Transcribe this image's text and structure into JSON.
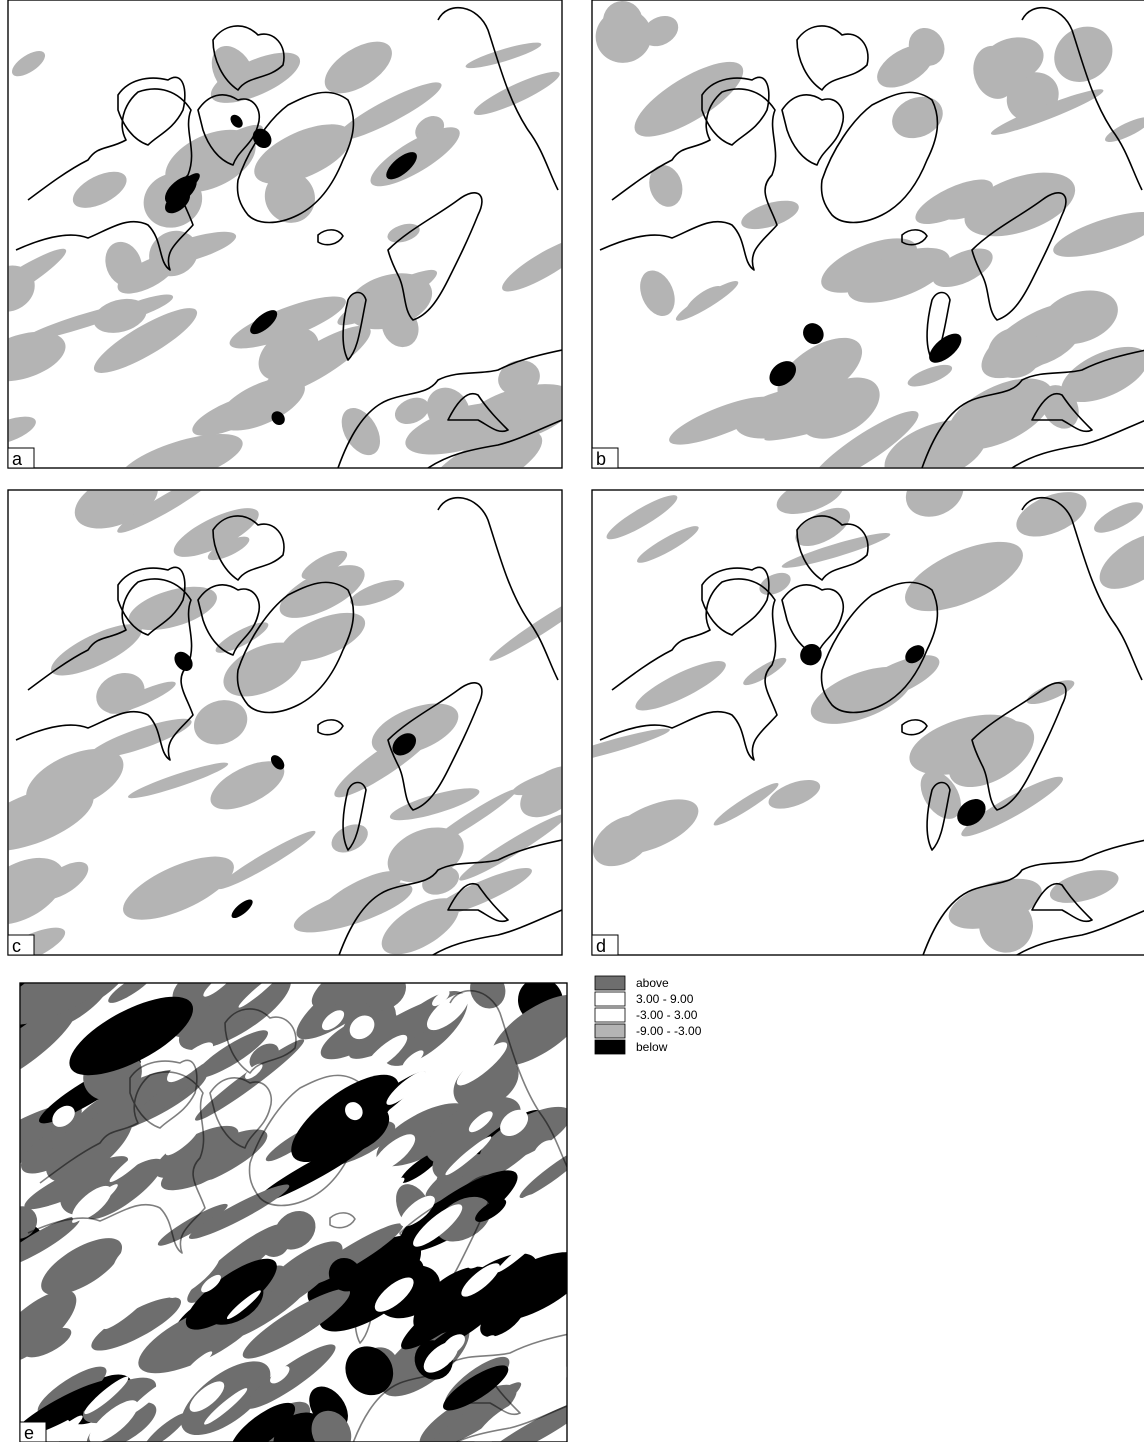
{
  "panels": [
    {
      "label": "a"
    },
    {
      "label": "b"
    },
    {
      "label": "c"
    },
    {
      "label": "d"
    },
    {
      "label": "e"
    }
  ],
  "legend": {
    "items": [
      {
        "label": "above",
        "color": "#6e6e6e"
      },
      {
        "label": " 3.00 -  9.00",
        "color": "#ffffff"
      },
      {
        "label": "-3.00 -  3.00",
        "color": "#ffffff"
      },
      {
        "label": "-9.00 - -3.00",
        "color": "#b4b4b4"
      },
      {
        "label": "below",
        "color": "#000000"
      }
    ]
  }
}
